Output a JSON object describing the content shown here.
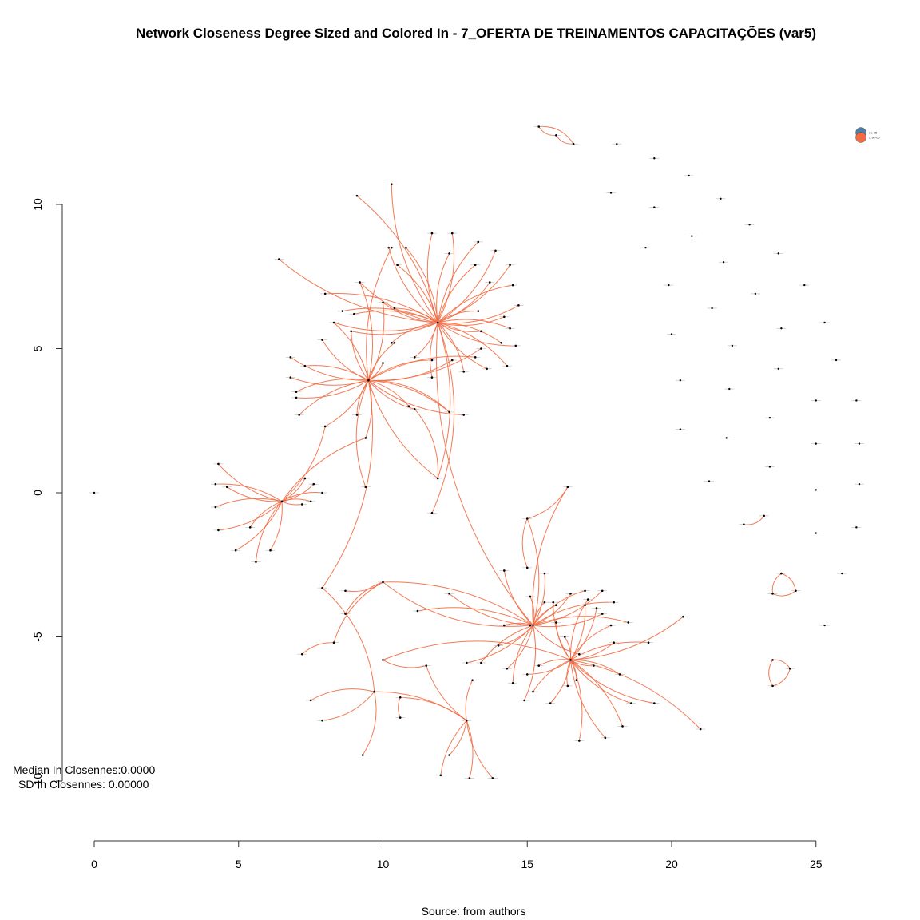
{
  "chart_data": {
    "type": "network",
    "title": "Network Closeness Degree Sized and Colored In - 7_OFERTA DE TREINAMENTOS CAPACITAÇÕES (var5)",
    "caption": "Source: from authors",
    "stats": [
      "Median In Closennes:0.0000",
      "SD In Closennes: 0.00000"
    ],
    "xlim": [
      0,
      25
    ],
    "ylim": [
      -10,
      10
    ],
    "x_ticks": [
      0,
      5,
      10,
      15,
      20,
      25
    ],
    "y_ticks": [
      -10,
      -5,
      0,
      5,
      10
    ],
    "legend": [
      {
        "label": "3e-05",
        "color": "#4f81a8"
      },
      {
        "label": "2.9e-05",
        "color": "#f26b43"
      }
    ],
    "edge_color": "#f26b43",
    "node_color": "#000000",
    "hubs": [
      {
        "id": "A",
        "x": 11.9,
        "y": 5.9
      },
      {
        "id": "B",
        "x": 9.5,
        "y": 3.9
      },
      {
        "id": "C",
        "x": 6.5,
        "y": -0.3
      },
      {
        "id": "D",
        "x": 15.2,
        "y": -4.6
      },
      {
        "id": "E",
        "x": 16.5,
        "y": -5.8
      },
      {
        "id": "F",
        "x": 12.9,
        "y": -7.9
      }
    ],
    "hub_links": [
      {
        "hub": "A",
        "nodes": [
          [
            10.3,
            10.7
          ],
          [
            9.1,
            10.3
          ],
          [
            10.2,
            8.5
          ],
          [
            10.8,
            8.5
          ],
          [
            11.7,
            9.0
          ],
          [
            12.4,
            9.0
          ],
          [
            13.3,
            8.7
          ],
          [
            13.9,
            8.4
          ],
          [
            12.3,
            8.3
          ],
          [
            14.4,
            7.9
          ],
          [
            13.2,
            7.9
          ],
          [
            13.7,
            7.3
          ],
          [
            14.5,
            7.2
          ],
          [
            14.7,
            6.5
          ],
          [
            13.3,
            6.3
          ],
          [
            14.2,
            6.1
          ],
          [
            14.4,
            5.7
          ],
          [
            13.4,
            5.6
          ],
          [
            14.1,
            5.2
          ],
          [
            14.6,
            5.1
          ],
          [
            14.3,
            4.4
          ],
          [
            13.6,
            4.3
          ],
          [
            12.8,
            4.2
          ],
          [
            11.7,
            4.0
          ],
          [
            11.1,
            4.7
          ],
          [
            10.3,
            5.2
          ],
          [
            10.0,
            6.6
          ],
          [
            10.4,
            6.4
          ],
          [
            9.2,
            7.3
          ],
          [
            8.6,
            6.3
          ],
          [
            8.3,
            5.9
          ],
          [
            9.0,
            6.2
          ],
          [
            8.9,
            5.6
          ],
          [
            8.0,
            6.9
          ],
          [
            6.4,
            8.1
          ],
          [
            10.5,
            7.9
          ],
          [
            11.9,
            0.5
          ]
        ]
      },
      {
        "hub": "B",
        "nodes": [
          [
            6.8,
            4.7
          ],
          [
            7.3,
            4.4
          ],
          [
            6.8,
            4.0
          ],
          [
            7.0,
            3.5
          ],
          [
            7.0,
            3.3
          ],
          [
            7.1,
            2.7
          ],
          [
            8.0,
            2.3
          ],
          [
            9.1,
            2.7
          ],
          [
            9.4,
            1.9
          ],
          [
            10.0,
            4.5
          ],
          [
            10.4,
            5.2
          ],
          [
            10.0,
            6.6
          ],
          [
            10.3,
            8.5
          ],
          [
            9.2,
            7.3
          ],
          [
            7.9,
            5.3
          ],
          [
            8.3,
            5.9
          ],
          [
            8.9,
            5.6
          ],
          [
            11.1,
            2.9
          ],
          [
            10.9,
            3.0
          ],
          [
            11.9,
            0.5
          ],
          [
            11.7,
            4.6
          ],
          [
            12.4,
            4.6
          ],
          [
            13.2,
            4.7
          ],
          [
            13.4,
            5.0
          ],
          [
            12.3,
            2.8
          ],
          [
            12.8,
            2.7
          ]
        ]
      },
      {
        "hub": "C",
        "nodes": [
          [
            4.3,
            1.0
          ],
          [
            4.2,
            0.3
          ],
          [
            4.6,
            0.2
          ],
          [
            4.2,
            -0.5
          ],
          [
            4.3,
            -1.3
          ],
          [
            5.4,
            -1.2
          ],
          [
            4.9,
            -2.0
          ],
          [
            5.6,
            -2.4
          ],
          [
            6.1,
            -2.0
          ],
          [
            7.6,
            0.3
          ],
          [
            7.9,
            0.0
          ],
          [
            7.2,
            -0.4
          ],
          [
            7.5,
            -0.3
          ],
          [
            7.3,
            0.5
          ],
          [
            9.4,
            1.9
          ],
          [
            8.0,
            2.3
          ]
        ]
      },
      {
        "hub": "D",
        "nodes": [
          [
            16.4,
            0.2
          ],
          [
            15.0,
            -0.9
          ],
          [
            14.2,
            -2.7
          ],
          [
            15.6,
            -2.8
          ],
          [
            15.6,
            -3.8
          ],
          [
            15.1,
            -3.6
          ],
          [
            16.0,
            -3.9
          ],
          [
            16.5,
            -3.5
          ],
          [
            17.0,
            -3.4
          ],
          [
            17.6,
            -3.4
          ],
          [
            18.0,
            -3.8
          ],
          [
            17.6,
            -4.2
          ],
          [
            18.5,
            -4.5
          ],
          [
            14.2,
            -4.6
          ],
          [
            14.0,
            -5.3
          ],
          [
            13.4,
            -5.9
          ],
          [
            14.3,
            -6.1
          ],
          [
            14.5,
            -6.6
          ],
          [
            14.9,
            -7.2
          ],
          [
            10.0,
            -3.1
          ],
          [
            12.3,
            -3.5
          ],
          [
            11.2,
            -4.1
          ],
          [
            12.9,
            -5.9
          ],
          [
            16.8,
            -5.6
          ]
        ]
      },
      {
        "hub": "E",
        "nodes": [
          [
            17.1,
            -3.7
          ],
          [
            17.4,
            -4.0
          ],
          [
            17.9,
            -4.6
          ],
          [
            18.0,
            -5.2
          ],
          [
            19.2,
            -5.2
          ],
          [
            20.4,
            -4.3
          ],
          [
            18.2,
            -6.3
          ],
          [
            19.4,
            -7.3
          ],
          [
            21.0,
            -8.2
          ],
          [
            18.6,
            -7.3
          ],
          [
            18.3,
            -8.1
          ],
          [
            17.7,
            -8.5
          ],
          [
            16.8,
            -8.6
          ],
          [
            16.4,
            -6.7
          ],
          [
            15.8,
            -7.3
          ],
          [
            15.2,
            -6.9
          ],
          [
            15.0,
            -6.3
          ],
          [
            15.4,
            -6.0
          ],
          [
            16.0,
            -4.5
          ],
          [
            16.3,
            -5.0
          ],
          [
            15.9,
            -3.8
          ],
          [
            17.0,
            -3.9
          ],
          [
            16.7,
            -6.5
          ],
          [
            17.3,
            -6.0
          ]
        ]
      },
      {
        "hub": "F",
        "nodes": [
          [
            12.3,
            -9.1
          ],
          [
            12.0,
            -9.8
          ],
          [
            13.0,
            -9.9
          ],
          [
            13.8,
            -9.9
          ],
          [
            13.1,
            -6.5
          ],
          [
            10.6,
            -7.1
          ],
          [
            11.5,
            -6.0
          ],
          [
            9.7,
            -6.9
          ]
        ]
      }
    ],
    "pair_links": [
      [
        [
          15.1,
          -4.6
        ],
        [
          10.0,
          -3.1
        ]
      ],
      [
        [
          16.5,
          -5.8
        ],
        [
          10.0,
          -5.8
        ]
      ],
      [
        [
          9.5,
          3.9
        ],
        [
          7.9,
          -3.3
        ]
      ],
      [
        [
          10.0,
          -3.1
        ],
        [
          8.7,
          -4.2
        ]
      ],
      [
        [
          10.0,
          -3.1
        ],
        [
          8.7,
          -3.4
        ]
      ],
      [
        [
          9.5,
          3.9
        ],
        [
          9.4,
          0.2
        ]
      ],
      [
        [
          7.9,
          -3.3
        ],
        [
          9.7,
          -6.9
        ]
      ],
      [
        [
          9.7,
          -6.9
        ],
        [
          7.5,
          -7.2
        ]
      ],
      [
        [
          9.7,
          -6.9
        ],
        [
          7.9,
          -7.9
        ]
      ],
      [
        [
          8.3,
          -5.2
        ],
        [
          7.2,
          -5.6
        ]
      ],
      [
        [
          8.3,
          -5.2
        ],
        [
          10.0,
          -3.1
        ]
      ],
      [
        [
          10.0,
          -5.8
        ],
        [
          11.5,
          -6.0
        ]
      ],
      [
        [
          9.7,
          -6.9
        ],
        [
          9.3,
          -9.1
        ]
      ],
      [
        [
          10.6,
          -7.1
        ],
        [
          10.6,
          -7.8
        ]
      ],
      [
        [
          11.9,
          5.9
        ],
        [
          11.7,
          -0.7
        ]
      ],
      [
        [
          15.0,
          -0.9
        ],
        [
          15.0,
          -2.6
        ]
      ],
      [
        [
          16.4,
          0.2
        ],
        [
          15.0,
          -0.9
        ]
      ],
      [
        [
          11.9,
          5.9
        ],
        [
          15.2,
          -4.6
        ]
      ],
      [
        [
          9.5,
          3.9
        ],
        [
          12.3,
          2.8
        ]
      ],
      [
        [
          11.9,
          0.5
        ],
        [
          11.1,
          2.9
        ]
      ]
    ],
    "small_components": [
      [
        [
          15.4,
          12.7
        ],
        [
          16.0,
          12.4
        ],
        [
          16.6,
          12.1
        ]
      ],
      [
        [
          22.5,
          -1.1
        ],
        [
          23.2,
          -0.8
        ]
      ],
      [
        [
          23.8,
          -2.8
        ],
        [
          23.5,
          -3.5
        ],
        [
          24.3,
          -3.4
        ]
      ],
      [
        [
          23.5,
          -5.8
        ],
        [
          23.5,
          -6.7
        ],
        [
          24.1,
          -6.1
        ]
      ]
    ],
    "isolates": [
      [
        0.0,
        0.0
      ],
      [
        18.1,
        12.1
      ],
      [
        19.4,
        11.6
      ],
      [
        20.6,
        11.0
      ],
      [
        17.9,
        10.4
      ],
      [
        21.7,
        10.2
      ],
      [
        19.4,
        9.9
      ],
      [
        22.7,
        9.3
      ],
      [
        20.7,
        8.9
      ],
      [
        19.1,
        8.5
      ],
      [
        23.7,
        8.3
      ],
      [
        21.8,
        8.0
      ],
      [
        24.6,
        7.2
      ],
      [
        19.9,
        7.2
      ],
      [
        22.9,
        6.9
      ],
      [
        21.4,
        6.4
      ],
      [
        25.3,
        5.9
      ],
      [
        23.8,
        5.7
      ],
      [
        20.0,
        5.5
      ],
      [
        22.1,
        5.1
      ],
      [
        25.7,
        4.6
      ],
      [
        23.7,
        4.3
      ],
      [
        20.3,
        3.9
      ],
      [
        22.0,
        3.6
      ],
      [
        25.0,
        3.2
      ],
      [
        26.4,
        3.2
      ],
      [
        23.4,
        2.6
      ],
      [
        20.3,
        2.2
      ],
      [
        21.9,
        1.9
      ],
      [
        25.0,
        1.7
      ],
      [
        26.5,
        1.7
      ],
      [
        23.4,
        0.9
      ],
      [
        21.3,
        0.4
      ],
      [
        25.0,
        0.1
      ],
      [
        26.5,
        0.3
      ],
      [
        25.0,
        -1.4
      ],
      [
        26.4,
        -1.2
      ],
      [
        25.9,
        -2.8
      ],
      [
        25.3,
        -4.6
      ]
    ]
  }
}
